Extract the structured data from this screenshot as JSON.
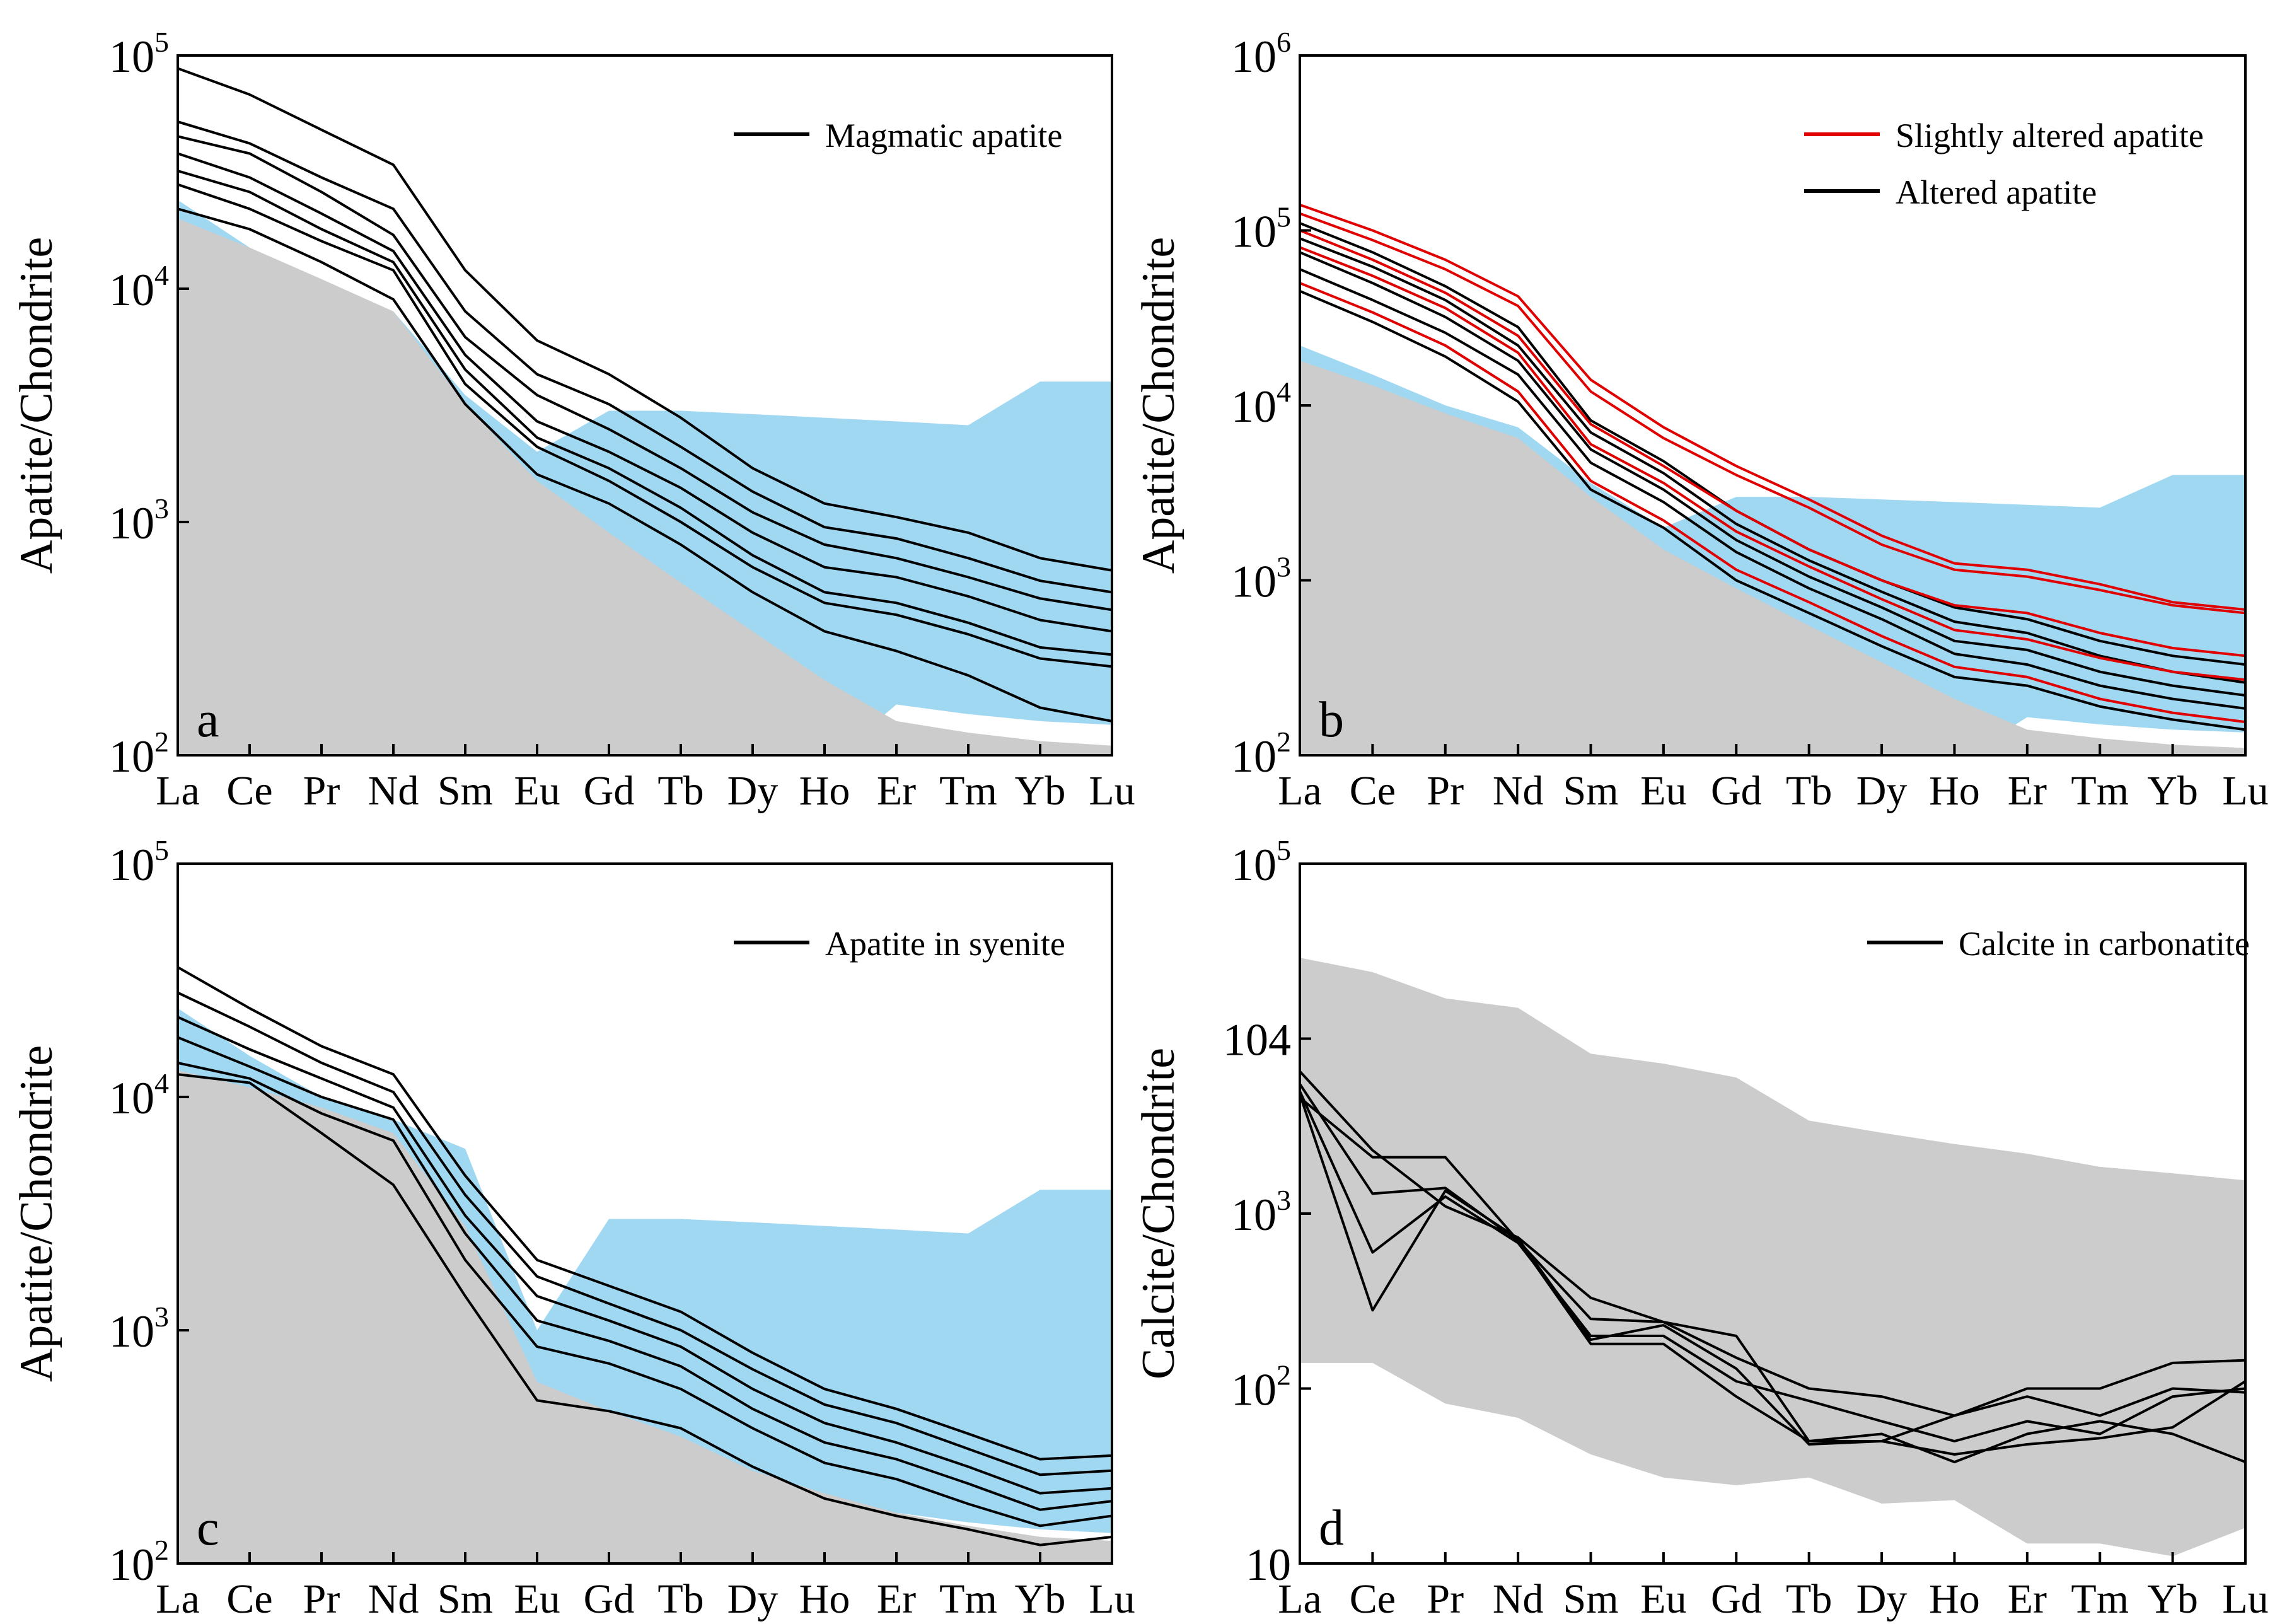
{
  "chart_data": [
    {
      "panel": "a",
      "type": "line",
      "categories": [
        "La",
        "Ce",
        "Pr",
        "Nd",
        "Sm",
        "Eu",
        "Gd",
        "Tb",
        "Dy",
        "Ho",
        "Er",
        "Tm",
        "Yb",
        "Lu"
      ],
      "ylabel": "Apatite/Chondrite",
      "yscale": "log",
      "ylim": [
        100,
        100000
      ],
      "yticks": [
        {
          "base": "10",
          "exp": "2"
        },
        {
          "base": "10",
          "exp": "3"
        },
        {
          "base": "10",
          "exp": "4"
        },
        {
          "base": "10",
          "exp": "5"
        }
      ],
      "legend": [
        {
          "label": "Magmatic apatite",
          "color": "#000000"
        }
      ],
      "bands": [
        {
          "name": "blue",
          "color": "#a0d8f2",
          "upper": [
            24000,
            15000,
            10000,
            8000,
            3500,
            2000,
            3000,
            3000,
            2900,
            2800,
            2700,
            2600,
            4000,
            4000
          ],
          "lower": [
            650,
            550,
            480,
            420,
            300,
            210,
            145,
            90,
            90,
            90,
            165,
            150,
            140,
            135
          ]
        },
        {
          "name": "gray",
          "color": "#cccccc",
          "upper": [
            20000,
            15000,
            11000,
            8000,
            3200,
            1500,
            900,
            550,
            340,
            210,
            140,
            125,
            115,
            110
          ],
          "lower": [
            100,
            100,
            100,
            100,
            100,
            100,
            100,
            100,
            100,
            100,
            100,
            100,
            100,
            100
          ]
        }
      ],
      "series": [
        {
          "name": "Magmatic apatite (upper)",
          "color": "#000000",
          "values": [
            88000,
            68000,
            48000,
            34000,
            12000,
            6000,
            4300,
            2800,
            1700,
            1200,
            1050,
            900,
            700,
            620
          ]
        },
        {
          "name": "Magmatic apatite",
          "color": "#000000",
          "values": [
            52000,
            42000,
            30000,
            22000,
            8000,
            4300,
            3200,
            2100,
            1350,
            950,
            850,
            700,
            560,
            500
          ]
        },
        {
          "name": "Magmatic apatite",
          "color": "#000000",
          "values": [
            45000,
            38000,
            26000,
            17000,
            6200,
            3500,
            2500,
            1700,
            1100,
            800,
            700,
            580,
            470,
            420
          ]
        },
        {
          "name": "Magmatic apatite",
          "color": "#000000",
          "values": [
            38000,
            30000,
            21000,
            14500,
            5200,
            2700,
            2000,
            1400,
            900,
            640,
            580,
            480,
            380,
            340
          ]
        },
        {
          "name": "Magmatic apatite",
          "color": "#000000",
          "values": [
            32000,
            26000,
            18000,
            13000,
            4500,
            2300,
            1700,
            1150,
            720,
            500,
            450,
            370,
            290,
            270
          ]
        },
        {
          "name": "Magmatic apatite",
          "color": "#000000",
          "values": [
            28000,
            22000,
            16000,
            12000,
            3900,
            2100,
            1500,
            1000,
            640,
            450,
            400,
            330,
            260,
            240
          ]
        },
        {
          "name": "Magmatic apatite (lower)",
          "color": "#000000",
          "values": [
            22000,
            18000,
            13000,
            9000,
            3200,
            1600,
            1200,
            800,
            500,
            340,
            280,
            220,
            160,
            140
          ]
        }
      ]
    },
    {
      "panel": "b",
      "type": "line",
      "categories": [
        "La",
        "Ce",
        "Pr",
        "Nd",
        "Sm",
        "Eu",
        "Gd",
        "Tb",
        "Dy",
        "Ho",
        "Er",
        "Tm",
        "Yb",
        "Lu"
      ],
      "ylabel": "Apatite/Chondrite",
      "yscale": "log",
      "ylim": [
        100,
        1000000
      ],
      "yticks": [
        {
          "base": "10",
          "exp": "2"
        },
        {
          "base": "10",
          "exp": "3"
        },
        {
          "base": "10",
          "exp": "4"
        },
        {
          "base": "10",
          "exp": "5"
        },
        {
          "base": "10",
          "exp": "6"
        }
      ],
      "legend": [
        {
          "label": "Slightly altered apatite",
          "color": "#e00000"
        },
        {
          "label": "Altered apatite",
          "color": "#000000"
        }
      ],
      "bands": [
        {
          "name": "blue",
          "color": "#a0d8f2",
          "upper": [
            22000,
            15000,
            10000,
            7500,
            3600,
            2000,
            3000,
            3000,
            2900,
            2800,
            2700,
            2600,
            4000,
            4000
          ],
          "lower": [
            650,
            550,
            480,
            420,
            300,
            210,
            145,
            90,
            90,
            90,
            165,
            150,
            140,
            135
          ]
        },
        {
          "name": "gray",
          "color": "#cccccc",
          "upper": [
            18000,
            13000,
            9000,
            6500,
            3000,
            1500,
            900,
            550,
            340,
            210,
            140,
            125,
            115,
            110
          ],
          "lower": [
            100,
            100,
            100,
            100,
            100,
            100,
            100,
            100,
            100,
            100,
            100,
            100,
            100,
            100
          ]
        }
      ],
      "series": [
        {
          "name": "Altered apatite",
          "color": "#000000",
          "values": [
            110000,
            75000,
            48000,
            28000,
            8200,
            4800,
            2500,
            1500,
            1000,
            700,
            600,
            450,
            370,
            330
          ]
        },
        {
          "name": "Altered apatite",
          "color": "#000000",
          "values": [
            90000,
            62000,
            40000,
            22000,
            7000,
            4100,
            2100,
            1300,
            860,
            580,
            500,
            370,
            300,
            260
          ]
        },
        {
          "name": "Altered apatite",
          "color": "#000000",
          "values": [
            75000,
            50000,
            32000,
            18000,
            5600,
            3300,
            1700,
            1050,
            700,
            450,
            400,
            300,
            250,
            220
          ]
        },
        {
          "name": "Altered apatite",
          "color": "#000000",
          "values": [
            60000,
            40000,
            26000,
            15000,
            4700,
            2800,
            1450,
            900,
            600,
            380,
            330,
            250,
            210,
            185
          ]
        },
        {
          "name": "Altered apatite",
          "color": "#000000",
          "values": [
            45000,
            30000,
            19000,
            10500,
            3300,
            2000,
            1000,
            650,
            420,
            280,
            250,
            190,
            160,
            140
          ]
        },
        {
          "name": "Slightly altered apatite",
          "color": "#e00000",
          "values": [
            140000,
            100000,
            68000,
            42000,
            14000,
            7500,
            4500,
            2900,
            1800,
            1250,
            1150,
            950,
            750,
            680
          ]
        },
        {
          "name": "Slightly altered apatite",
          "color": "#e00000",
          "values": [
            125000,
            88000,
            60000,
            37000,
            12000,
            6500,
            4000,
            2600,
            1600,
            1150,
            1050,
            880,
            720,
            650
          ]
        },
        {
          "name": "Slightly altered apatite",
          "color": "#e00000",
          "values": [
            100000,
            68000,
            44000,
            25000,
            7800,
            4500,
            2500,
            1500,
            1000,
            720,
            650,
            500,
            410,
            370
          ]
        },
        {
          "name": "Slightly altered apatite",
          "color": "#e00000",
          "values": [
            80000,
            55000,
            36000,
            20000,
            6000,
            3600,
            1900,
            1200,
            780,
            520,
            460,
            360,
            300,
            270
          ]
        },
        {
          "name": "Slightly altered apatite",
          "color": "#e00000",
          "values": [
            50000,
            34000,
            22000,
            12000,
            3700,
            2200,
            1150,
            750,
            480,
            320,
            280,
            210,
            175,
            155
          ]
        }
      ]
    },
    {
      "panel": "c",
      "type": "line",
      "categories": [
        "La",
        "Ce",
        "Pr",
        "Nd",
        "Sm",
        "Eu",
        "Gd",
        "Tb",
        "Dy",
        "Ho",
        "Er",
        "Tm",
        "Yb",
        "Lu"
      ],
      "ylabel": "Apatite/Chondrite",
      "yscale": "log",
      "ylim": [
        100,
        100000
      ],
      "yticks": [
        {
          "base": "10",
          "exp": "2"
        },
        {
          "base": "10",
          "exp": "3"
        },
        {
          "base": "10",
          "exp": "4"
        },
        {
          "base": "10",
          "exp": "5"
        }
      ],
      "legend": [
        {
          "label": "Apatite in syenite",
          "color": "#000000"
        }
      ],
      "bands": [
        {
          "name": "blue",
          "color": "#a0d8f2",
          "upper": [
            24000,
            15000,
            10000,
            8000,
            6000,
            1000,
            3000,
            3000,
            2900,
            2800,
            2700,
            2600,
            4000,
            4000
          ],
          "lower": [
            650,
            550,
            480,
            420,
            300,
            210,
            145,
            90,
            90,
            90,
            165,
            150,
            140,
            135
          ]
        },
        {
          "name": "gray",
          "color": "#cccccc",
          "upper": [
            13000,
            11000,
            9000,
            7000,
            2800,
            600,
            450,
            350,
            250,
            200,
            165,
            145,
            130,
            125
          ],
          "lower": [
            100,
            100,
            100,
            100,
            100,
            100,
            100,
            100,
            100,
            100,
            100,
            100,
            100,
            100
          ]
        }
      ],
      "series": [
        {
          "name": "Apatite in syenite",
          "color": "#000000",
          "values": [
            36000,
            24000,
            16500,
            12500,
            4600,
            2000,
            1550,
            1200,
            800,
            560,
            460,
            360,
            280,
            290
          ]
        },
        {
          "name": "Apatite in syenite",
          "color": "#000000",
          "values": [
            28000,
            20000,
            14000,
            10500,
            3800,
            1700,
            1300,
            1000,
            680,
            480,
            400,
            310,
            240,
            250
          ]
        },
        {
          "name": "Apatite in syenite",
          "color": "#000000",
          "values": [
            22000,
            16000,
            12000,
            9000,
            3100,
            1400,
            1100,
            850,
            560,
            400,
            330,
            260,
            200,
            210
          ]
        },
        {
          "name": "Apatite in syenite",
          "color": "#000000",
          "values": [
            18000,
            13500,
            10000,
            8000,
            2600,
            1100,
            900,
            700,
            460,
            330,
            280,
            220,
            170,
            185
          ]
        },
        {
          "name": "Apatite in syenite",
          "color": "#000000",
          "values": [
            14000,
            12000,
            8500,
            6500,
            2000,
            850,
            720,
            560,
            380,
            270,
            230,
            180,
            145,
            160
          ]
        },
        {
          "name": "Apatite in syenite",
          "color": "#000000",
          "values": [
            12500,
            11500,
            7000,
            4200,
            1400,
            500,
            450,
            380,
            260,
            190,
            160,
            140,
            120,
            130
          ]
        }
      ]
    },
    {
      "panel": "d",
      "type": "line",
      "categories": [
        "La",
        "Ce",
        "Pr",
        "Nd",
        "Sm",
        "Eu",
        "Gd",
        "Tb",
        "Dy",
        "Ho",
        "Er",
        "Tm",
        "Yb",
        "Lu"
      ],
      "ylabel": "Calcite/Chondrite",
      "yscale": "log",
      "ylim": [
        10,
        100000
      ],
      "yticks": [
        {
          "base": "10",
          "exp": ""
        },
        {
          "base": "10",
          "exp": "2"
        },
        {
          "base": "10",
          "exp": "3"
        },
        {
          "base": "104",
          "exp": ""
        },
        {
          "base": "10",
          "exp": "5"
        }
      ],
      "legend": [
        {
          "label": "Calcite in carbonatite",
          "color": "#000000"
        }
      ],
      "bands": [
        {
          "name": "gray",
          "color": "#cccccc",
          "upper": [
            29000,
            24000,
            17000,
            15000,
            8200,
            7200,
            6000,
            3400,
            2900,
            2500,
            2200,
            1850,
            1700,
            1550
          ],
          "lower": [
            140,
            140,
            82,
            68,
            42,
            31,
            28,
            31,
            22,
            23,
            13,
            13,
            11,
            16
          ]
        }
      ],
      "series": [
        {
          "name": "Calcite in carbonatite",
          "color": "#000000",
          "values": [
            6500,
            2300,
            1100,
            730,
            330,
            240,
            200,
            50,
            50,
            70,
            100,
            100,
            140,
            145
          ]
        },
        {
          "name": "Calcite in carbonatite",
          "color": "#000000",
          "values": [
            5500,
            1300,
            1400,
            700,
            250,
            240,
            150,
            100,
            90,
            70,
            90,
            70,
            100,
            95
          ]
        },
        {
          "name": "Calcite in carbonatite",
          "color": "#000000",
          "values": [
            5000,
            600,
            1250,
            680,
            200,
            200,
            110,
            85,
            65,
            50,
            65,
            55,
            90,
            100
          ]
        },
        {
          "name": "Calcite in carbonatite",
          "color": "#000000",
          "values": [
            4600,
            2100,
            2100,
            700,
            180,
            180,
            90,
            50,
            55,
            38,
            55,
            65,
            55,
            38
          ]
        },
        {
          "name": "Calcite in carbonatite",
          "color": "#000000",
          "values": [
            4800,
            280,
            1350,
            720,
            190,
            230,
            130,
            48,
            50,
            42,
            48,
            52,
            60,
            110
          ]
        }
      ]
    }
  ],
  "panel_labels": [
    "a",
    "b",
    "c",
    "d"
  ]
}
